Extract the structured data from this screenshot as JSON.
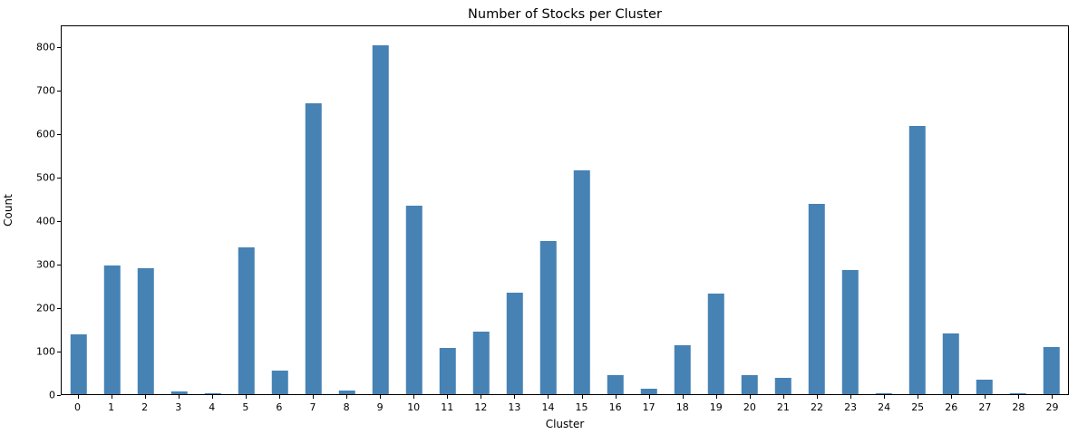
{
  "chart_data": {
    "type": "bar",
    "title": "Number of Stocks per Cluster",
    "xlabel": "Cluster",
    "ylabel": "Count",
    "categories": [
      "0",
      "1",
      "2",
      "3",
      "4",
      "5",
      "6",
      "7",
      "8",
      "9",
      "10",
      "11",
      "12",
      "13",
      "14",
      "15",
      "16",
      "17",
      "18",
      "19",
      "20",
      "21",
      "22",
      "23",
      "24",
      "25",
      "26",
      "27",
      "28",
      "29"
    ],
    "values": [
      138,
      297,
      291,
      6,
      2,
      340,
      54,
      672,
      8,
      806,
      436,
      106,
      144,
      235,
      354,
      518,
      45,
      12,
      113,
      233,
      44,
      38,
      440,
      287,
      3,
      620,
      141,
      33,
      1,
      108
    ],
    "yticks": [
      0,
      100,
      200,
      300,
      400,
      500,
      600,
      700,
      800
    ],
    "ylim": [
      0,
      850
    ],
    "bar_color": "#4682b4",
    "grid": false,
    "legend": null
  }
}
